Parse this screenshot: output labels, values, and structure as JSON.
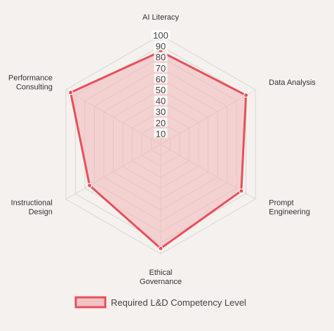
{
  "chart_data": {
    "type": "radar",
    "axes": [
      [
        "AI Literacy"
      ],
      [
        "Data Analysis"
      ],
      [
        "Prompt",
        "Engineering"
      ],
      [
        "Ethical",
        "Governance"
      ],
      [
        "Instructional",
        "Design"
      ],
      [
        "Performance",
        "Consulting"
      ]
    ],
    "ticks": [
      "10",
      "20",
      "30",
      "40",
      "50",
      "60",
      "70",
      "80",
      "90",
      "100"
    ],
    "rlim": [
      0,
      100
    ],
    "series": [
      {
        "name": "Required L&D Competency Level",
        "values": [
          85,
          90,
          85,
          95,
          75,
          95
        ]
      }
    ],
    "legend_position": "bottom",
    "colors": {
      "line": "#e8505b",
      "fill": "#f3b7b9",
      "grid": "#dcd6d2",
      "tick_bg": "#ffffff"
    }
  }
}
